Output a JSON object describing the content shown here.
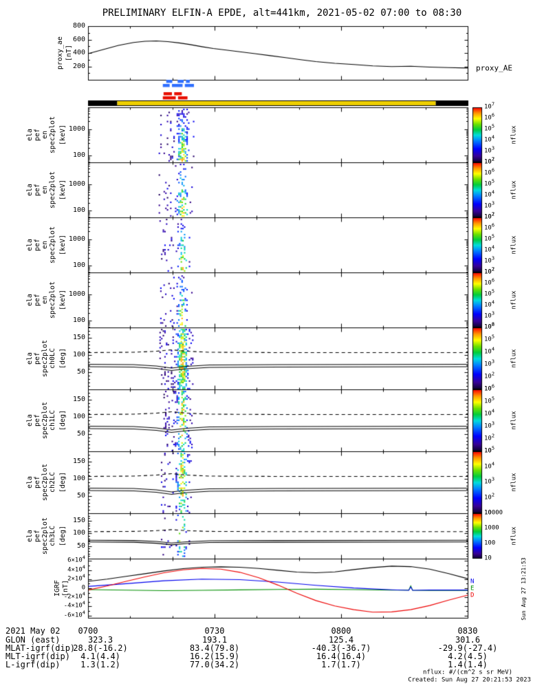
{
  "title": "PRELIMINARY ELFIN-A EPDE, alt=441km, 2021-05-02 07:00 to 08:30",
  "notes": {
    "units": "nflux: #/(cm^2 s sr MeV)",
    "created": "Created: Sun Aug 27 20:21:53 2023",
    "side_timestamp": "Sun Aug 27 13:21:53"
  },
  "footer": {
    "date_label": "2021 May 02",
    "time_ticks": [
      "0700",
      "0730",
      "0800",
      "0830"
    ],
    "rows": [
      {
        "label": "GLON (east)",
        "values": [
          "323.3",
          "193.1",
          "125.4",
          "301.6"
        ]
      },
      {
        "label": "MLAT-igrf(dip)",
        "values": [
          "28.8(-16.2)",
          "83.4(79.8)",
          "-40.3(-36.7)",
          "-29.9(-27.4)"
        ]
      },
      {
        "label": "MLT-igrf(dip)",
        "values": [
          "4.1(4.4)",
          "16.2(15.9)",
          "16.4(16.4)",
          "4.2(4.5)"
        ]
      },
      {
        "label": "L-igrf(dip)",
        "values": [
          "1.3(1.2)",
          "77.0(34.2)",
          "1.7(1.7)",
          "1.4(1.4)"
        ]
      }
    ]
  },
  "chart_data": {
    "x_axis": {
      "duration_minutes": 90,
      "major_every_minutes": 30,
      "minor_every_minutes": 10
    },
    "proxy_panel": {
      "type": "line",
      "ylabel_lines": [
        "proxy_ae"
      ],
      "unit_label": "[nT]",
      "right_label": "proxy_AE",
      "ylim": [
        0,
        800
      ],
      "ytick_vals": [
        200,
        400,
        600,
        800
      ],
      "ytick_labels": [
        "200",
        "400",
        "600",
        "800"
      ],
      "series": {
        "name": "proxy_AE",
        "color": "#000000",
        "x": [
          0,
          0.04,
          0.08,
          0.12,
          0.15,
          0.18,
          0.21,
          0.24,
          0.27,
          0.3,
          0.33,
          0.36,
          0.4,
          0.44,
          0.48,
          0.52,
          0.56,
          0.6,
          0.65,
          0.7,
          0.75,
          0.8,
          0.85,
          0.9,
          0.95,
          1.0
        ],
        "y": [
          390,
          452,
          512,
          556,
          574,
          580,
          570,
          550,
          524,
          494,
          466,
          446,
          418,
          390,
          360,
          330,
          300,
          272,
          246,
          228,
          208,
          198,
          202,
          190,
          182,
          176
        ]
      }
    },
    "mode_bars": {
      "rows": [
        {
          "color": "#2f6fff",
          "segments": [
            [
              0.206,
              0.222
            ],
            [
              0.236,
              0.252
            ],
            [
              0.258,
              0.268
            ]
          ]
        },
        {
          "color": "#2f6fff",
          "segments": [
            [
              0.197,
              0.215
            ],
            [
              0.221,
              0.249
            ],
            [
              0.255,
              0.279
            ]
          ]
        },
        {
          "color": "#e81000",
          "segments": [
            [
              0.199,
              0.221
            ],
            [
              0.227,
              0.247
            ]
          ]
        },
        {
          "color": "#e81000",
          "segments": [
            [
              0.197,
              0.231
            ],
            [
              0.237,
              0.262
            ]
          ]
        }
      ]
    },
    "status_bar": {
      "segments": [
        {
          "color": "#000000",
          "x0": 0.0,
          "x1": 0.077
        },
        {
          "color": "#eecf00",
          "x0": 0.077,
          "x1": 0.916
        },
        {
          "color": "#000000",
          "x0": 0.916,
          "x1": 1.0
        }
      ]
    },
    "energy_panels": [
      {
        "ylabel_lines": [
          "ela",
          "pef",
          "en",
          "spec2plot"
        ],
        "unit_label": "[keV]",
        "yscale": "log",
        "ylim": [
          55,
          6800
        ],
        "ytick_vals": [
          100,
          1000
        ],
        "ytick_labels": [
          "100",
          "1000"
        ],
        "colorbar": {
          "tick_labels": [
            "10^7",
            "10^6",
            "10^5",
            "10^4",
            "10^3",
            "10^2"
          ],
          "label": "nflux"
        },
        "burst": {
          "seed": 11,
          "x0": 0.186,
          "x1": 0.279,
          "core": 0.247,
          "sigma": 0.012,
          "density": 0.4
        }
      },
      {
        "ylabel_lines": [
          "ela",
          "pef",
          "en",
          "spec2plot"
        ],
        "unit_label": "[keV]",
        "yscale": "log",
        "ylim": [
          55,
          6800
        ],
        "ytick_vals": [
          100,
          1000
        ],
        "ytick_labels": [
          "100",
          "1000"
        ],
        "colorbar": {
          "tick_labels": [
            "10^7",
            "10^6",
            "10^5",
            "10^4",
            "10^3",
            "10^2"
          ],
          "label": "nflux"
        },
        "burst": {
          "seed": 22,
          "x0": 0.186,
          "x1": 0.276,
          "core": 0.247,
          "sigma": 0.012,
          "density": 0.34
        }
      },
      {
        "ylabel_lines": [
          "ela",
          "pef",
          "en",
          "spec2plot"
        ],
        "unit_label": "[keV]",
        "yscale": "log",
        "ylim": [
          55,
          6800
        ],
        "ytick_vals": [
          100,
          1000
        ],
        "ytick_labels": [
          "100",
          "1000"
        ],
        "colorbar": {
          "tick_labels": [
            "10^7",
            "10^6",
            "10^5",
            "10^4",
            "10^3",
            "10^2"
          ],
          "label": "nflux"
        },
        "burst": {
          "seed": 33,
          "x0": 0.188,
          "x1": 0.274,
          "core": 0.247,
          "sigma": 0.011,
          "density": 0.3
        }
      },
      {
        "ylabel_lines": [
          "ela",
          "pef",
          "en",
          "spec2plot"
        ],
        "unit_label": "[keV]",
        "yscale": "log",
        "ylim": [
          55,
          6800
        ],
        "ytick_vals": [
          100,
          1000
        ],
        "ytick_labels": [
          "100",
          "1000"
        ],
        "colorbar": {
          "tick_labels": [
            "10^7",
            "10^6",
            "10^5",
            "10^4",
            "10^3",
            "10^2"
          ],
          "label": "nflux"
        },
        "burst": {
          "seed": 44,
          "x0": 0.19,
          "x1": 0.272,
          "core": 0.246,
          "sigma": 0.01,
          "density": 0.26
        }
      }
    ],
    "pitch_overlay_lines": {
      "dashed": {
        "x": [
          0,
          0.12,
          0.18,
          0.22,
          0.26,
          0.32,
          0.5,
          1.0
        ],
        "y": [
          107,
          108,
          111,
          115,
          111,
          108,
          107,
          107
        ]
      },
      "solid": {
        "x": [
          0,
          0.12,
          0.18,
          0.22,
          0.26,
          0.32,
          0.5,
          1.0
        ],
        "y": [
          73,
          72,
          68,
          62,
          67,
          71,
          72,
          73
        ]
      },
      "solid2": {
        "x": [
          0,
          0.12,
          0.18,
          0.22,
          0.26,
          0.32,
          0.5,
          1.0
        ],
        "y": [
          66,
          65,
          61,
          55,
          60,
          64,
          65,
          66
        ]
      }
    },
    "pitch_panels": [
      {
        "ylabel_lines": [
          "ela",
          "pef",
          "spec2plot",
          "ch0LC"
        ],
        "unit_label": "[deg]",
        "ylim": [
          0,
          180
        ],
        "ytick_vals": [
          50,
          100,
          150
        ],
        "ytick_labels": [
          "50",
          "100",
          "150"
        ],
        "colorbar": {
          "tick_labels": [
            "10^6",
            "10^5",
            "10^4",
            "10^3",
            "10^2",
            "10"
          ],
          "label": "nflux"
        },
        "burst": {
          "seed": 55,
          "x0": 0.188,
          "x1": 0.276,
          "core": 0.247,
          "sigma": 0.012,
          "density": 0.44
        }
      },
      {
        "ylabel_lines": [
          "ela",
          "pef",
          "spec2plot",
          "ch1LC"
        ],
        "unit_label": "[deg]",
        "ylim": [
          0,
          180
        ],
        "ytick_vals": [
          50,
          100,
          150
        ],
        "ytick_labels": [
          "50",
          "100",
          "150"
        ],
        "colorbar": {
          "tick_labels": [
            "10^6",
            "10^5",
            "10^4",
            "10^3",
            "10^2",
            "10"
          ],
          "label": "nflux"
        },
        "burst": {
          "seed": 66,
          "x0": 0.19,
          "x1": 0.274,
          "core": 0.247,
          "sigma": 0.011,
          "density": 0.4
        }
      },
      {
        "ylabel_lines": [
          "ela",
          "pef",
          "spec2plot",
          "ch2LC"
        ],
        "unit_label": "[deg]",
        "ylim": [
          0,
          180
        ],
        "ytick_vals": [
          50,
          100,
          150
        ],
        "ytick_labels": [
          "50",
          "100",
          "150"
        ],
        "colorbar": {
          "tick_labels": [
            "10^5",
            "10^4",
            "10^3",
            "10^2",
            "10"
          ],
          "label": "nflux"
        },
        "burst": {
          "seed": 77,
          "x0": 0.192,
          "x1": 0.272,
          "core": 0.246,
          "sigma": 0.011,
          "density": 0.36
        }
      },
      {
        "ylabel_lines": [
          "ela",
          "pef",
          "spec2plot",
          "ch3LC"
        ],
        "unit_label": "[deg]",
        "ylim": [
          0,
          180
        ],
        "ytick_vals": [
          50,
          100,
          150
        ],
        "ytick_labels": [
          "50",
          "100",
          "150"
        ],
        "colorbar": {
          "tick_labels": [
            "10000",
            "1000",
            "100",
            "10"
          ],
          "label": "nflux"
        },
        "burst": {
          "seed": 88,
          "x0": 0.192,
          "x1": 0.268,
          "core": 0.245,
          "sigma": 0.01,
          "density": 0.22
        }
      }
    ],
    "igrf_panel": {
      "type": "line",
      "ylabel_lines": [
        "IGRF"
      ],
      "unit_label": "[nT]",
      "ylim": [
        -65000,
        65000
      ],
      "ytick_vals": [
        60000,
        40000,
        20000,
        0,
        -20000,
        -40000,
        -60000
      ],
      "ytick_labels": [
        "6×10^4",
        "4×10^4",
        "2×10^4",
        "0",
        "-2×10^4",
        "-4×10^4",
        "-6×10^4"
      ],
      "series": [
        {
          "name": "E",
          "color": "#008f00",
          "x": [
            0,
            0.1,
            0.2,
            0.3,
            0.4,
            0.5,
            0.6,
            0.7,
            0.8,
            0.845,
            0.85,
            0.855,
            0.9,
            1.0
          ],
          "y": [
            -3000,
            -4200,
            -5200,
            -4600,
            -3600,
            -2600,
            -2100,
            -3000,
            -4000,
            -4200,
            5000,
            -4600,
            -5000,
            -5000
          ]
        },
        {
          "name": "N",
          "color": "#0000ee",
          "x": [
            0,
            0.1,
            0.2,
            0.3,
            0.4,
            0.5,
            0.6,
            0.7,
            0.8,
            0.845,
            0.85,
            0.855,
            0.9,
            1.0
          ],
          "y": [
            4000,
            10000,
            16500,
            20000,
            19000,
            13500,
            6500,
            500,
            -3500,
            -4500,
            3000,
            -4500,
            -4000,
            -4000
          ]
        },
        {
          "name": "D",
          "color": "#ee0000",
          "x": [
            0,
            0.05,
            0.1,
            0.15,
            0.2,
            0.25,
            0.3,
            0.35,
            0.4,
            0.45,
            0.5,
            0.55,
            0.6,
            0.65,
            0.7,
            0.75,
            0.8,
            0.85,
            0.9,
            0.95,
            1.0
          ],
          "y": [
            -4000,
            5000,
            15000,
            25000,
            34000,
            40500,
            43500,
            42000,
            35000,
            23000,
            7000,
            -11000,
            -27000,
            -39000,
            -47000,
            -52500,
            -52000,
            -47000,
            -38000,
            -26000,
            -15000
          ]
        },
        {
          "name": "B",
          "color": "#000000",
          "x": [
            0,
            0.05,
            0.1,
            0.15,
            0.2,
            0.25,
            0.3,
            0.35,
            0.4,
            0.45,
            0.5,
            0.55,
            0.6,
            0.65,
            0.7,
            0.75,
            0.8,
            0.85,
            0.9,
            0.95,
            1.0
          ],
          "y": [
            15000,
            20000,
            26000,
            32000,
            38000,
            43000,
            46000,
            47000,
            46000,
            43500,
            39500,
            35500,
            34000,
            36000,
            41000,
            45500,
            48500,
            47500,
            42000,
            32000,
            21000
          ]
        }
      ],
      "legend": [
        {
          "label": "N",
          "color": "#0000ee"
        },
        {
          "label": "E",
          "color": "#008f00"
        },
        {
          "label": "D",
          "color": "#ee0000"
        }
      ]
    }
  }
}
